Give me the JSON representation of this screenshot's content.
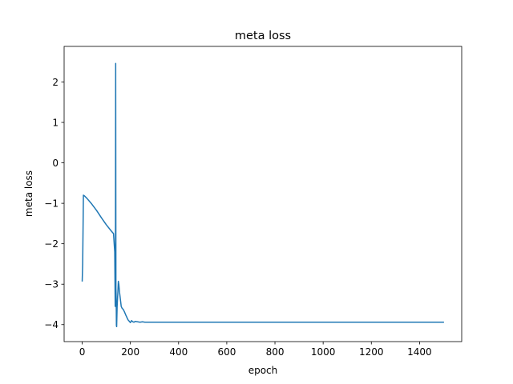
{
  "chart_data": {
    "type": "line",
    "title": "meta loss",
    "xlabel": "epoch",
    "ylabel": "meta loss",
    "xlim": [
      -75,
      1575
    ],
    "ylim": [
      -4.42,
      2.88
    ],
    "xticks": [
      0,
      200,
      400,
      600,
      800,
      1000,
      1200,
      1400
    ],
    "yticks": [
      -4,
      -3,
      -2,
      -1,
      0,
      1,
      2
    ],
    "xtick_labels": [
      "0",
      "200",
      "400",
      "600",
      "800",
      "1000",
      "1200",
      "1400"
    ],
    "ytick_labels": [
      "−4",
      "−3",
      "−2",
      "−1",
      "0",
      "1",
      "2"
    ],
    "grid": false,
    "color": "#1f77b4",
    "series": [
      {
        "x": [
          0,
          2,
          5,
          10,
          20,
          40,
          60,
          80,
          100,
          120,
          130,
          135,
          137,
          138,
          139,
          140,
          141,
          142,
          143,
          145,
          148,
          150,
          152,
          155,
          158,
          162,
          166,
          170,
          175,
          180,
          190,
          200,
          205,
          210,
          215,
          220,
          230,
          240,
          250,
          260,
          300,
          400,
          500,
          600,
          700,
          800,
          900,
          1000,
          1100,
          1200,
          1300,
          1400,
          1450,
          1499
        ],
        "y": [
          -2.92,
          -2.5,
          -0.8,
          -0.82,
          -0.88,
          -1.02,
          -1.18,
          -1.36,
          -1.53,
          -1.68,
          -1.75,
          -2.2,
          -3.55,
          -2.5,
          2.46,
          -3.1,
          -3.3,
          -4.02,
          -4.05,
          -3.55,
          -3.2,
          -2.93,
          -3.0,
          -3.2,
          -3.35,
          -3.55,
          -3.6,
          -3.62,
          -3.68,
          -3.75,
          -3.88,
          -3.95,
          -3.9,
          -3.93,
          -3.94,
          -3.92,
          -3.93,
          -3.94,
          -3.93,
          -3.94,
          -3.94,
          -3.94,
          -3.94,
          -3.94,
          -3.94,
          -3.94,
          -3.94,
          -3.94,
          -3.94,
          -3.94,
          -3.94,
          -3.94,
          -3.94,
          -3.94
        ]
      }
    ]
  }
}
